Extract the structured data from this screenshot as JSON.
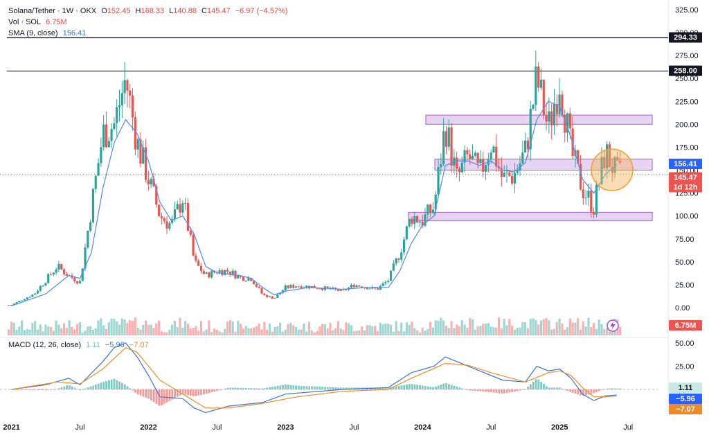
{
  "legend": {
    "symbol": "Solana/Tether · 1W · OKX",
    "open_label": "O",
    "open": "152.45",
    "high_label": "H",
    "high": "168.33",
    "low_label": "L",
    "low": "140.88",
    "close_label": "C",
    "close": "145.47",
    "change": "−6.97 (−4.57%)",
    "vol_label": "Vol · SOL",
    "vol": "6.75M",
    "sma_label": "SMA (9, close)",
    "sma": "156.41",
    "macd_label": "MACD (12, 26, close)",
    "macd_hist": "1.11",
    "macd_line": "−5.96",
    "macd_signal": "−7.07"
  },
  "price_tags": {
    "line_294": "294.33",
    "line_258": "258.00",
    "sma": "156.41",
    "close": "145.47",
    "countdown": "1d 12h",
    "volume": "6.75M",
    "macd_hist": "1.11",
    "macd_line": "−5.96",
    "macd_signal": "−7.07"
  },
  "colors": {
    "up": "#26a69a",
    "down": "#ef5350",
    "sma": "#5b8def",
    "zone": "#c9a0e6",
    "macd": "#3a6fd8",
    "signal": "#f08a24",
    "circle": "#f6b35b"
  },
  "chart_data": {
    "type": "candlestick",
    "price_axis_ticks": [
      "325.00",
      "300.00",
      "275.00",
      "250.00",
      "225.00",
      "200.00",
      "175.00",
      "150.00",
      "125.00",
      "100.00",
      "75.00",
      "50.00",
      "25.00",
      "0.00"
    ],
    "macd_axis_ticks": [
      "50.00",
      "25.00"
    ],
    "time_axis_labels": [
      "2021",
      "Jul",
      "2022",
      "Jul",
      "2023",
      "Jul",
      "2024",
      "Jul",
      "2025",
      "Jul"
    ],
    "horizontal_lines": [
      294.33,
      258.0
    ],
    "zones": [
      [
        200,
        210
      ],
      [
        150,
        162
      ],
      [
        95,
        104
      ]
    ],
    "close_path": [
      {
        "t": "2021-01",
        "v": 3
      },
      {
        "t": "2021-03",
        "v": 15
      },
      {
        "t": "2021-05",
        "v": 45
      },
      {
        "t": "2021-06",
        "v": 35
      },
      {
        "t": "2021-07",
        "v": 28
      },
      {
        "t": "2021-08",
        "v": 110
      },
      {
        "t": "2021-09",
        "v": 190
      },
      {
        "t": "2021-10",
        "v": 200
      },
      {
        "t": "2021-11",
        "v": 250
      },
      {
        "t": "2021-12",
        "v": 180
      },
      {
        "t": "2022-01",
        "v": 140
      },
      {
        "t": "2022-02",
        "v": 100
      },
      {
        "t": "2022-03",
        "v": 90
      },
      {
        "t": "2022-04",
        "v": 120
      },
      {
        "t": "2022-05",
        "v": 50
      },
      {
        "t": "2022-06",
        "v": 35
      },
      {
        "t": "2022-07",
        "v": 40
      },
      {
        "t": "2022-08",
        "v": 40
      },
      {
        "t": "2022-09",
        "v": 33
      },
      {
        "t": "2022-10",
        "v": 32
      },
      {
        "t": "2022-11",
        "v": 14
      },
      {
        "t": "2022-12",
        "v": 10
      },
      {
        "t": "2023-01",
        "v": 22
      },
      {
        "t": "2023-02",
        "v": 24
      },
      {
        "t": "2023-04",
        "v": 22
      },
      {
        "t": "2023-06",
        "v": 18
      },
      {
        "t": "2023-07",
        "v": 25
      },
      {
        "t": "2023-09",
        "v": 20
      },
      {
        "t": "2023-10",
        "v": 30
      },
      {
        "t": "2023-11",
        "v": 60
      },
      {
        "t": "2023-12",
        "v": 100
      },
      {
        "t": "2024-01",
        "v": 95
      },
      {
        "t": "2024-02",
        "v": 110
      },
      {
        "t": "2024-03",
        "v": 200
      },
      {
        "t": "2024-04",
        "v": 140
      },
      {
        "t": "2024-05",
        "v": 165
      },
      {
        "t": "2024-06",
        "v": 145
      },
      {
        "t": "2024-07",
        "v": 180
      },
      {
        "t": "2024-08",
        "v": 140
      },
      {
        "t": "2024-09",
        "v": 145
      },
      {
        "t": "2024-10",
        "v": 170
      },
      {
        "t": "2024-11",
        "v": 250
      },
      {
        "t": "2024-12",
        "v": 195
      },
      {
        "t": "2025-01",
        "v": 250
      },
      {
        "t": "2025-02",
        "v": 170
      },
      {
        "t": "2025-03",
        "v": 130
      },
      {
        "t": "2025-04",
        "v": 110
      },
      {
        "t": "2025-05",
        "v": 170
      },
      {
        "t": "2025-06",
        "v": 145
      }
    ],
    "sma_path": [
      {
        "t": "2021-01",
        "v": 2
      },
      {
        "t": "2021-04",
        "v": 15
      },
      {
        "t": "2021-06",
        "v": 35
      },
      {
        "t": "2021-07",
        "v": 32
      },
      {
        "t": "2021-08",
        "v": 60
      },
      {
        "t": "2021-09",
        "v": 130
      },
      {
        "t": "2021-10",
        "v": 180
      },
      {
        "t": "2021-11",
        "v": 205
      },
      {
        "t": "2021-12",
        "v": 190
      },
      {
        "t": "2022-01",
        "v": 160
      },
      {
        "t": "2022-02",
        "v": 115
      },
      {
        "t": "2022-03",
        "v": 95
      },
      {
        "t": "2022-04",
        "v": 100
      },
      {
        "t": "2022-05",
        "v": 80
      },
      {
        "t": "2022-06",
        "v": 45
      },
      {
        "t": "2022-07",
        "v": 38
      },
      {
        "t": "2022-09",
        "v": 35
      },
      {
        "t": "2022-10",
        "v": 32
      },
      {
        "t": "2022-11",
        "v": 22
      },
      {
        "t": "2022-12",
        "v": 14
      },
      {
        "t": "2023-01",
        "v": 18
      },
      {
        "t": "2023-03",
        "v": 22
      },
      {
        "t": "2023-06",
        "v": 20
      },
      {
        "t": "2023-08",
        "v": 22
      },
      {
        "t": "2023-10",
        "v": 22
      },
      {
        "t": "2023-11",
        "v": 40
      },
      {
        "t": "2023-12",
        "v": 70
      },
      {
        "t": "2024-01",
        "v": 90
      },
      {
        "t": "2024-02",
        "v": 100
      },
      {
        "t": "2024-03",
        "v": 155
      },
      {
        "t": "2024-04",
        "v": 160
      },
      {
        "t": "2024-05",
        "v": 160
      },
      {
        "t": "2024-06",
        "v": 155
      },
      {
        "t": "2024-07",
        "v": 160
      },
      {
        "t": "2024-08",
        "v": 150
      },
      {
        "t": "2024-09",
        "v": 148
      },
      {
        "t": "2024-10",
        "v": 158
      },
      {
        "t": "2024-11",
        "v": 205
      },
      {
        "t": "2024-12",
        "v": 225
      },
      {
        "t": "2025-01",
        "v": 220
      },
      {
        "t": "2025-02",
        "v": 185
      },
      {
        "t": "2025-03",
        "v": 140
      },
      {
        "t": "2025-04",
        "v": 125
      },
      {
        "t": "2025-05",
        "v": 145
      },
      {
        "t": "2025-06",
        "v": 156
      }
    ],
    "macd_path": [
      {
        "t": "2021-01",
        "v": 0
      },
      {
        "t": "2021-04",
        "v": 5
      },
      {
        "t": "2021-06",
        "v": 12
      },
      {
        "t": "2021-07",
        "v": 5
      },
      {
        "t": "2021-09",
        "v": 30
      },
      {
        "t": "2021-10",
        "v": 45
      },
      {
        "t": "2021-11",
        "v": 50
      },
      {
        "t": "2021-12",
        "v": 35
      },
      {
        "t": "2022-01",
        "v": 15
      },
      {
        "t": "2022-02",
        "v": -8
      },
      {
        "t": "2022-04",
        "v": -10
      },
      {
        "t": "2022-05",
        "v": -20
      },
      {
        "t": "2022-06",
        "v": -25
      },
      {
        "t": "2022-08",
        "v": -18
      },
      {
        "t": "2022-11",
        "v": -14
      },
      {
        "t": "2023-01",
        "v": -5
      },
      {
        "t": "2023-06",
        "v": 0
      },
      {
        "t": "2023-10",
        "v": 2
      },
      {
        "t": "2023-12",
        "v": 18
      },
      {
        "t": "2024-02",
        "v": 25
      },
      {
        "t": "2024-03",
        "v": 35
      },
      {
        "t": "2024-04",
        "v": 30
      },
      {
        "t": "2024-06",
        "v": 20
      },
      {
        "t": "2024-08",
        "v": 10
      },
      {
        "t": "2024-10",
        "v": 8
      },
      {
        "t": "2024-11",
        "v": 25
      },
      {
        "t": "2024-12",
        "v": 20
      },
      {
        "t": "2025-01",
        "v": 22
      },
      {
        "t": "2025-02",
        "v": 12
      },
      {
        "t": "2025-03",
        "v": -5
      },
      {
        "t": "2025-04",
        "v": -12
      },
      {
        "t": "2025-05",
        "v": -7
      },
      {
        "t": "2025-06",
        "v": -5.96
      }
    ],
    "signal_path": [
      {
        "t": "2021-01",
        "v": 0
      },
      {
        "t": "2021-05",
        "v": 8
      },
      {
        "t": "2021-07",
        "v": 6
      },
      {
        "t": "2021-09",
        "v": 22
      },
      {
        "t": "2021-11",
        "v": 45
      },
      {
        "t": "2021-12",
        "v": 40
      },
      {
        "t": "2022-02",
        "v": 10
      },
      {
        "t": "2022-04",
        "v": -5
      },
      {
        "t": "2022-06",
        "v": -20
      },
      {
        "t": "2022-08",
        "v": -20
      },
      {
        "t": "2022-11",
        "v": -15
      },
      {
        "t": "2023-02",
        "v": -8
      },
      {
        "t": "2023-06",
        "v": -2
      },
      {
        "t": "2023-10",
        "v": 0
      },
      {
        "t": "2023-12",
        "v": 12
      },
      {
        "t": "2024-03",
        "v": 28
      },
      {
        "t": "2024-05",
        "v": 26
      },
      {
        "t": "2024-07",
        "v": 18
      },
      {
        "t": "2024-10",
        "v": 8
      },
      {
        "t": "2024-12",
        "v": 18
      },
      {
        "t": "2025-01",
        "v": 20
      },
      {
        "t": "2025-02",
        "v": 15
      },
      {
        "t": "2025-03",
        "v": 2
      },
      {
        "t": "2025-04",
        "v": -8
      },
      {
        "t": "2025-05",
        "v": -8
      },
      {
        "t": "2025-06",
        "v": -7.07
      }
    ]
  }
}
